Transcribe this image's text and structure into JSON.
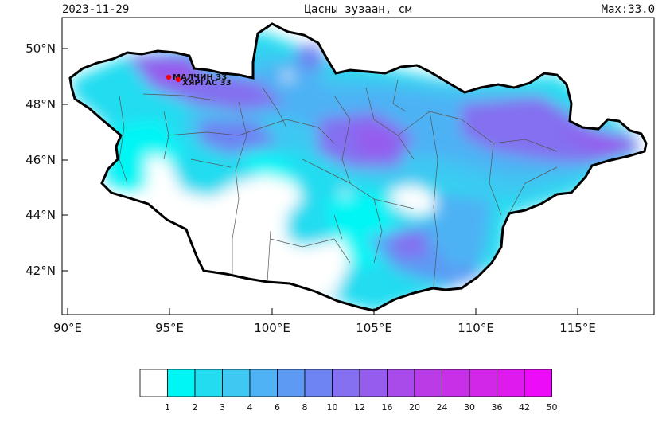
{
  "header": {
    "date": "2023-11-29",
    "title": "Цасны зузаан, см",
    "max": "Max:33.0"
  },
  "map": {
    "lat_ticks": [
      "50°N",
      "48°N",
      "46°N",
      "44°N",
      "42°N"
    ],
    "lon_ticks": [
      "90°E",
      "95°E",
      "100°E",
      "105°E",
      "110°E",
      "115°E"
    ],
    "stations": [
      {
        "name": "МАЛЧИН",
        "value": "33"
      },
      {
        "name": "ХЯРГАС",
        "value": "33"
      }
    ],
    "colors": {
      "border": "#000000",
      "station": "#ff0000"
    }
  },
  "colorbar": {
    "labels": [
      "1",
      "2",
      "3",
      "4",
      "6",
      "8",
      "10",
      "12",
      "16",
      "20",
      "24",
      "30",
      "36",
      "42",
      "50"
    ],
    "colors": [
      "#ffffff",
      "#00f5f5",
      "#24dcf0",
      "#3ec8f2",
      "#4eb2f4",
      "#5c9af4",
      "#6e84f2",
      "#8470f0",
      "#965cee",
      "#a94aeb",
      "#b93ce7",
      "#c730e6",
      "#d226e9",
      "#de1aee",
      "#ed0cf7"
    ]
  }
}
